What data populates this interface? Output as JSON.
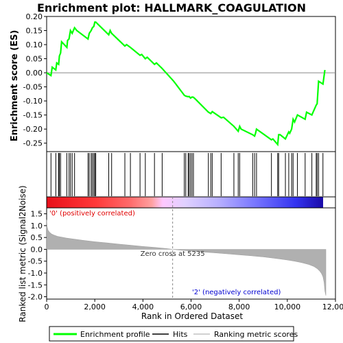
{
  "chart_data": {
    "type": "line",
    "title": "Enrichment plot: HALLMARK_COAGULATION",
    "x_range": [
      0,
      12000
    ],
    "x_ticks": [
      "0",
      "2,000",
      "4,000",
      "6,000",
      "8,000",
      "10,000",
      "12,000"
    ],
    "x_tick_values": [
      0,
      2000,
      4000,
      6000,
      8000,
      10000,
      12000
    ],
    "dataset_size": 11600,
    "es_panel": {
      "ylabel": "Enrichment score (ES)",
      "ylim": [
        -0.28,
        0.2
      ],
      "y_ticks": [
        "0.20",
        "0.15",
        "0.10",
        "0.05",
        "0.00",
        "-0.05",
        "-0.10",
        "-0.15",
        "-0.20",
        "-0.25"
      ],
      "y_tick_values": [
        0.2,
        0.15,
        0.1,
        0.05,
        0.0,
        -0.05,
        -0.1,
        -0.15,
        -0.2,
        -0.25
      ],
      "series": [
        {
          "name": "Enrichment profile",
          "color": "#00ff00",
          "x": [
            0,
            180,
            230,
            380,
            420,
            500,
            530,
            580,
            620,
            840,
            870,
            930,
            990,
            1060,
            1160,
            1250,
            1720,
            1770,
            1850,
            1900,
            1960,
            2000,
            2040,
            2580,
            2640,
            2700,
            3250,
            3320,
            3480,
            3880,
            3950,
            4100,
            4180,
            4480,
            4560,
            4800,
            5280,
            5720,
            5780,
            5880,
            5920,
            5980,
            6040,
            6100,
            6200,
            6720,
            6820,
            6880,
            7250,
            7350,
            7780,
            7960,
            8020,
            8080,
            8560,
            8640,
            8680,
            8720,
            9340,
            9400,
            9600,
            9640,
            9700,
            9920,
            10060,
            10100,
            10180,
            10240,
            10300,
            10420,
            10740,
            10800,
            11020,
            11200,
            11240,
            11300,
            11480,
            11560
          ],
          "y": [
            0.0,
            -0.01,
            0.02,
            0.01,
            0.035,
            0.03,
            0.06,
            0.07,
            0.11,
            0.09,
            0.115,
            0.12,
            0.15,
            0.14,
            0.16,
            0.15,
            0.12,
            0.14,
            0.15,
            0.16,
            0.165,
            0.18,
            0.18,
            0.135,
            0.15,
            0.14,
            0.095,
            0.1,
            0.09,
            0.062,
            0.065,
            0.05,
            0.055,
            0.03,
            0.035,
            0.015,
            -0.03,
            -0.08,
            -0.083,
            -0.085,
            -0.084,
            -0.09,
            -0.086,
            -0.087,
            -0.095,
            -0.14,
            -0.145,
            -0.138,
            -0.16,
            -0.158,
            -0.19,
            -0.208,
            -0.19,
            -0.2,
            -0.22,
            -0.225,
            -0.215,
            -0.2,
            -0.238,
            -0.235,
            -0.255,
            -0.22,
            -0.22,
            -0.235,
            -0.21,
            -0.215,
            -0.2,
            -0.165,
            -0.175,
            -0.15,
            -0.165,
            -0.14,
            -0.15,
            -0.115,
            -0.11,
            -0.03,
            -0.04,
            0.01
          ]
        }
      ]
    },
    "hits": {
      "name": "Hits",
      "positions": [
        180,
        380,
        500,
        530,
        580,
        840,
        930,
        990,
        1060,
        1160,
        1720,
        1770,
        1850,
        1900,
        1960,
        2000,
        2040,
        2580,
        2700,
        3250,
        3480,
        3880,
        4100,
        4480,
        4800,
        5720,
        5780,
        5880,
        5920,
        5980,
        6040,
        6100,
        6720,
        6820,
        6880,
        7250,
        7780,
        7960,
        8020,
        8560,
        8640,
        8720,
        9340,
        9600,
        9640,
        9920,
        10060,
        10180,
        10240,
        10420,
        10740,
        11020,
        11200,
        11240,
        11300,
        11480
      ]
    },
    "heatmap": {
      "colors": [
        "#e8101a",
        "#ff3a3a",
        "#ff6a6a",
        "#ffa0a0",
        "#ffc8ff",
        "#e0d0ff",
        "#b8b0ff",
        "#7a78ff",
        "#3434f0",
        "#1a0aa8"
      ],
      "stops": [
        0,
        0.18,
        0.3,
        0.38,
        0.42,
        0.5,
        0.62,
        0.75,
        0.9,
        1.0
      ]
    },
    "metric_panel": {
      "ylabel": "Ranked list metric (Signal2Noise)",
      "ylim": [
        -2.1,
        1.75
      ],
      "y_ticks": [
        "1.5",
        "1.0",
        "0.5",
        "0.0",
        "-0.5",
        "-1.0",
        "-1.5",
        "-2.0"
      ],
      "y_tick_values": [
        1.5,
        1.0,
        0.5,
        0.0,
        -0.5,
        -1.0,
        -1.5,
        -2.0
      ],
      "series": [
        {
          "name": "Ranking metric scores",
          "color": "#b0b0b0",
          "x": [
            0,
            20,
            60,
            120,
            200,
            300,
            450,
            600,
            800,
            1000,
            1500,
            2000,
            2500,
            3000,
            3500,
            4000,
            4500,
            5000,
            5235,
            5500,
            6000,
            6500,
            7000,
            7500,
            8000,
            8500,
            9000,
            9500,
            10000,
            10300,
            10600,
            10900,
            11100,
            11250,
            11350,
            11420,
            11480,
            11530,
            11560,
            11600
          ],
          "y": [
            1.25,
            0.95,
            0.8,
            0.72,
            0.65,
            0.6,
            0.55,
            0.52,
            0.48,
            0.45,
            0.38,
            0.32,
            0.27,
            0.22,
            0.17,
            0.12,
            0.08,
            0.03,
            0.0,
            -0.03,
            -0.07,
            -0.11,
            -0.15,
            -0.19,
            -0.23,
            -0.27,
            -0.32,
            -0.38,
            -0.45,
            -0.5,
            -0.56,
            -0.64,
            -0.72,
            -0.82,
            -0.92,
            -1.02,
            -1.15,
            -1.4,
            -1.75,
            -1.95
          ]
        }
      ],
      "zero_cross_label": "Zero cross at 5235",
      "zero_cross": 5235,
      "positive_label": "'0' (positively correlated)",
      "negative_label": "'2' (negatively correlated)"
    },
    "xlabel": "Rank in Ordered Dataset",
    "legend": {
      "placement": "bottom",
      "items": [
        "Enrichment profile",
        "Hits",
        "Ranking metric scores"
      ]
    }
  }
}
